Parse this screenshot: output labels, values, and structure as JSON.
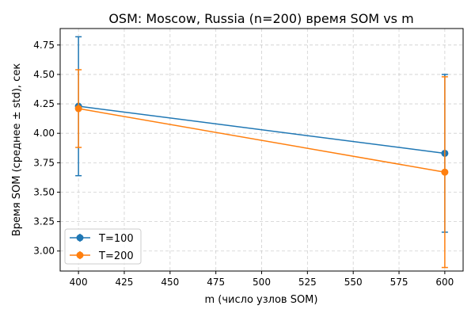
{
  "chart_data": {
    "type": "line",
    "title": "OSM: Moscow, Russia (n=200) время SOM vs m",
    "xlabel": "m (число узлов SOM)",
    "ylabel": "Время SOM (среднее ± std), сек",
    "xlim": [
      390,
      610
    ],
    "ylim": [
      2.83,
      4.89
    ],
    "xticks": [
      400,
      425,
      450,
      475,
      500,
      525,
      550,
      575,
      600
    ],
    "yticks": [
      3.0,
      3.25,
      3.5,
      3.75,
      4.0,
      4.25,
      4.5,
      4.75
    ],
    "xtick_labels": [
      "400",
      "425",
      "450",
      "475",
      "500",
      "525",
      "550",
      "575",
      "600"
    ],
    "ytick_labels": [
      "3.00",
      "3.25",
      "3.50",
      "3.75",
      "4.00",
      "4.25",
      "4.50",
      "4.75"
    ],
    "grid": true,
    "legend_position": "lower-left",
    "series": [
      {
        "name": "T=100",
        "color": "#1f77b4",
        "x": [
          400,
          600
        ],
        "y": [
          4.23,
          3.83
        ],
        "std": [
          0.59,
          0.67
        ]
      },
      {
        "name": "T=200",
        "color": "#ff7f0e",
        "x": [
          400,
          600
        ],
        "y": [
          4.21,
          3.67
        ],
        "std": [
          0.33,
          0.81
        ]
      }
    ]
  }
}
